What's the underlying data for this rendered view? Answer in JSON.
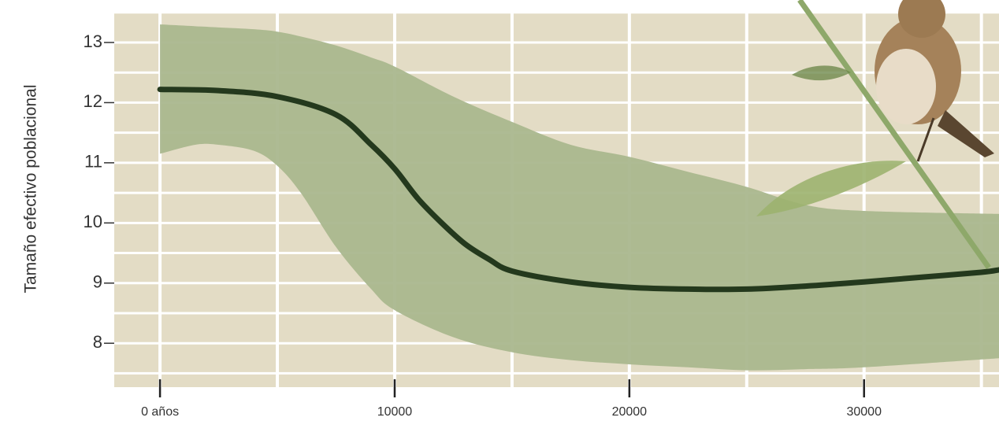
{
  "chart_data": {
    "type": "line",
    "ylabel": "Tamaño efectivo poblacional",
    "xlim": [
      -1950,
      35750
    ],
    "ylim": [
      7.27,
      13.51
    ],
    "xticks": [
      {
        "value": 0,
        "label": "0 años"
      },
      10000,
      20000,
      30000
    ],
    "yticks": [
      8,
      9,
      10,
      11,
      12,
      13
    ],
    "xgrid": [
      0,
      5000,
      10000,
      15000,
      20000,
      25000,
      30000,
      35000
    ],
    "ygrid": [
      7.5,
      8,
      8.5,
      9,
      9.5,
      10,
      10.5,
      11,
      11.5,
      12,
      12.5,
      13,
      13.5
    ],
    "background": "#e3dcc5",
    "band": {
      "color": "#aab78e",
      "x": [
        0,
        1500,
        2500,
        4000,
        5000,
        6000,
        7500,
        9000,
        10000,
        12500,
        15000,
        17500,
        20000,
        22500,
        25000,
        27500,
        30000,
        35750
      ],
      "upper": [
        13.3,
        13.27,
        13.25,
        13.22,
        13.18,
        13.1,
        12.95,
        12.75,
        12.6,
        12.1,
        11.68,
        11.3,
        11.1,
        10.85,
        10.6,
        10.3,
        10.2,
        10.15
      ],
      "lower": [
        11.15,
        11.3,
        11.3,
        11.2,
        10.95,
        10.5,
        9.6,
        8.9,
        8.55,
        8.1,
        7.85,
        7.72,
        7.65,
        7.6,
        7.55,
        7.57,
        7.6,
        7.75
      ]
    },
    "series": [
      {
        "color": "#24391d",
        "x": [
          0,
          2500,
          5000,
          7500,
          9000,
          10000,
          11000,
          12000,
          13000,
          14000,
          15000,
          17500,
          20000,
          22500,
          25000,
          27500,
          30000,
          32500,
          35000,
          35750
        ],
        "values": [
          12.22,
          12.2,
          12.1,
          11.8,
          11.3,
          10.9,
          10.4,
          10.0,
          9.65,
          9.4,
          9.2,
          9.02,
          8.93,
          8.9,
          8.9,
          8.95,
          9.02,
          9.1,
          9.18,
          9.22
        ]
      }
    ]
  }
}
